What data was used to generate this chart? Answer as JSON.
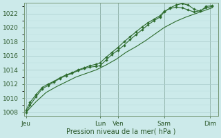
{
  "xlabel": "Pression niveau de la mer( hPa )",
  "bg_color": "#cceaea",
  "grid_color_major": "#aacccc",
  "grid_color_minor": "#bbdddd",
  "line_color": "#2d6b2d",
  "ylim": [
    1007.5,
    1023.5
  ],
  "yticks": [
    1008,
    1010,
    1012,
    1014,
    1016,
    1018,
    1020,
    1022
  ],
  "xlim": [
    -0.1,
    9.6
  ],
  "day_labels": [
    "Jeu",
    "Lun",
    "Ven",
    "Sam",
    "Dim"
  ],
  "day_positions": [
    0.0,
    3.7,
    4.6,
    6.9,
    9.2
  ],
  "vline_positions": [
    0.0,
    3.7,
    4.6,
    6.9,
    9.2
  ],
  "vline_color": "#557755",
  "series1_x": [
    0.0,
    0.2,
    0.5,
    0.8,
    1.1,
    1.4,
    1.7,
    2.0,
    2.3,
    2.6,
    2.9,
    3.2,
    3.5,
    3.7,
    4.0,
    4.3,
    4.6,
    4.9,
    5.2,
    5.5,
    5.8,
    6.1,
    6.4,
    6.7,
    6.9,
    7.2,
    7.5,
    7.8,
    8.1,
    8.4,
    8.7,
    9.0,
    9.3
  ],
  "series1_y": [
    1008.0,
    1009.0,
    1010.2,
    1011.3,
    1011.8,
    1012.3,
    1012.8,
    1013.2,
    1013.5,
    1013.9,
    1014.2,
    1014.4,
    1014.5,
    1014.6,
    1015.4,
    1016.2,
    1016.8,
    1017.5,
    1018.3,
    1019.0,
    1019.7,
    1020.4,
    1021.0,
    1021.5,
    1022.2,
    1022.8,
    1023.2,
    1023.4,
    1023.2,
    1022.6,
    1022.3,
    1023.0,
    1023.1
  ],
  "series2_x": [
    0.0,
    0.2,
    0.5,
    0.8,
    1.1,
    1.4,
    1.7,
    2.0,
    2.3,
    2.6,
    2.9,
    3.2,
    3.5,
    3.7,
    4.0,
    4.3,
    4.6,
    4.9,
    5.2,
    5.5,
    5.8,
    6.1,
    6.4,
    6.7,
    6.9,
    7.2,
    7.5,
    7.8,
    8.1,
    8.4,
    8.7,
    9.0,
    9.3
  ],
  "series2_y": [
    1008.3,
    1009.4,
    1010.5,
    1011.5,
    1012.0,
    1012.4,
    1012.9,
    1013.3,
    1013.6,
    1014.0,
    1014.3,
    1014.6,
    1014.8,
    1015.0,
    1015.8,
    1016.5,
    1017.2,
    1018.0,
    1018.7,
    1019.4,
    1020.1,
    1020.7,
    1021.2,
    1021.7,
    1022.3,
    1022.7,
    1022.9,
    1022.8,
    1022.5,
    1022.2,
    1022.4,
    1022.8,
    1023.0
  ],
  "series3_x": [
    0.0,
    0.5,
    1.0,
    1.5,
    2.0,
    2.5,
    3.0,
    3.5,
    4.0,
    4.5,
    5.0,
    5.5,
    6.0,
    6.5,
    6.9,
    7.5,
    8.0,
    8.5,
    9.0,
    9.3
  ],
  "series3_y": [
    1008.0,
    1009.5,
    1010.8,
    1011.6,
    1012.3,
    1013.0,
    1013.5,
    1014.0,
    1014.7,
    1015.5,
    1016.5,
    1017.3,
    1018.2,
    1019.2,
    1020.0,
    1020.9,
    1021.5,
    1022.0,
    1022.5,
    1022.8
  ]
}
